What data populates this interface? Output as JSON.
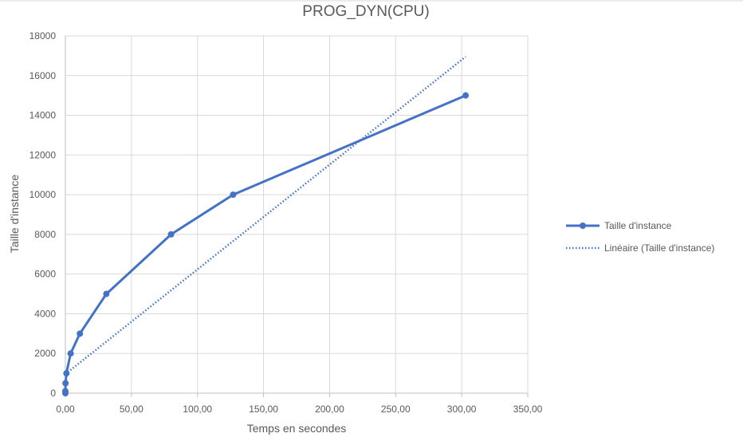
{
  "chart_data": {
    "type": "scatter",
    "title": "PROG_DYN(CPU)",
    "xlabel": "Temps en secondes",
    "ylabel": "Taille d'instance",
    "xlim": [
      0,
      350
    ],
    "ylim": [
      0,
      18000
    ],
    "x_ticks": [
      "0,00",
      "50,00",
      "100,00",
      "150,00",
      "200,00",
      "250,00",
      "300,00",
      "350,00"
    ],
    "y_ticks": [
      "0",
      "2000",
      "4000",
      "6000",
      "8000",
      "10000",
      "12000",
      "14000",
      "16000",
      "18000"
    ],
    "grid": true,
    "legend_position": "right",
    "series": [
      {
        "name": "Taille d'instance",
        "style": "solid-line-markers",
        "color": "#4472c4",
        "points": [
          {
            "x": 0.0,
            "y": 0
          },
          {
            "x": 0.0,
            "y": 100
          },
          {
            "x": 0.1,
            "y": 500
          },
          {
            "x": 0.8,
            "y": 1000
          },
          {
            "x": 4.0,
            "y": 2000
          },
          {
            "x": 11.0,
            "y": 3000
          },
          {
            "x": 31.0,
            "y": 5000
          },
          {
            "x": 80.0,
            "y": 8000
          },
          {
            "x": 127.0,
            "y": 10000
          },
          {
            "x": 303.0,
            "y": 15000
          }
        ]
      },
      {
        "name": "Linéaire (Taille d'instance)",
        "style": "dotted-trendline",
        "color": "#4472c4",
        "points": [
          {
            "x": 0.0,
            "y": 960
          },
          {
            "x": 303.0,
            "y": 16950
          }
        ]
      }
    ]
  }
}
